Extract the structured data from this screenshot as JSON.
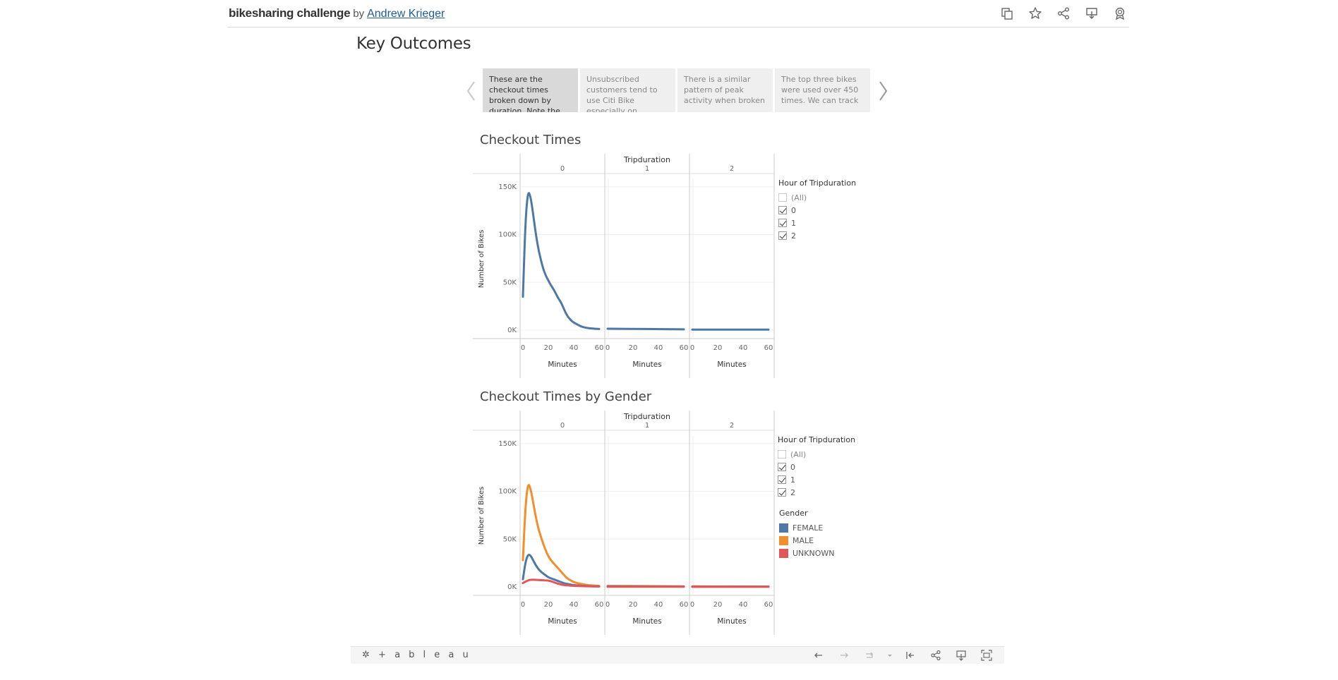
{
  "header": {
    "title": "bikesharing challenge",
    "by": "by",
    "author": "Andrew Krieger",
    "icons": [
      "copy-icon",
      "star-icon",
      "share-icon",
      "download-icon",
      "badge-icon"
    ]
  },
  "story": {
    "title": "Key Outcomes",
    "captions": [
      "These are the checkout times broken down by duration. Note the",
      "Unsubscribed customers tend to use Citi Bike especially on",
      "There is a similar pattern of peak activity when broken",
      "The top three bikes were used over 450 times. We can track"
    ]
  },
  "sheet1": {
    "title": "Checkout Times",
    "legend": {
      "title": "Hour of Tripduration",
      "items": [
        "(All)",
        "0",
        "1",
        "2"
      ]
    }
  },
  "sheet2": {
    "title": "Checkout Times by Gender",
    "legend": {
      "title": "Hour of Tripduration",
      "items": [
        "(All)",
        "0",
        "1",
        "2"
      ]
    },
    "gender_legend": {
      "title": "Gender",
      "items": [
        {
          "label": "FEMALE",
          "color": "#4e79a7"
        },
        {
          "label": "MALE",
          "color": "#f28e2b"
        },
        {
          "label": "UNKNOWN",
          "color": "#e15759"
        }
      ]
    }
  },
  "chart_data": [
    {
      "type": "line",
      "title": "Checkout Times",
      "column_header": "Tripduration",
      "panels": [
        "0",
        "1",
        "2"
      ],
      "xlabel": "Minutes",
      "ylabel": "Number of Bikes",
      "xticks": [
        "0",
        "20",
        "40",
        "60"
      ],
      "yticks": [
        "0K",
        "50K",
        "100K",
        "150K"
      ],
      "ylim": [
        0,
        155000
      ],
      "xlim": [
        0,
        60
      ],
      "series": [
        {
          "color": "#4e79a7",
          "panel_values": [
            {
              "x": [
                0,
                2,
                4,
                6,
                8,
                10,
                12,
                14,
                16,
                18,
                20,
                22,
                24,
                26,
                28,
                30,
                32,
                34,
                36,
                38,
                40,
                42,
                44,
                46,
                48,
                50,
                52,
                54,
                56,
                58,
                60
              ],
              "y": [
                35000,
                115000,
                146000,
                140000,
                122000,
                102000,
                86000,
                74000,
                64000,
                57000,
                52000,
                47000,
                43000,
                38000,
                33000,
                29000,
                23000,
                17000,
                13000,
                10000,
                8000,
                6500,
                5000,
                3800,
                3000,
                2400,
                2000,
                1700,
                1500,
                1300,
                1200
              ]
            },
            {
              "x": [
                0,
                60
              ],
              "y": [
                1500,
                800
              ]
            },
            {
              "x": [
                0,
                60
              ],
              "y": [
                600,
                500
              ]
            }
          ]
        }
      ]
    },
    {
      "type": "line",
      "title": "Checkout Times by Gender",
      "column_header": "Tripduration",
      "panels": [
        "0",
        "1",
        "2"
      ],
      "xlabel": "Minutes",
      "ylabel": "Number of Bikes",
      "xticks": [
        "0",
        "20",
        "40",
        "60"
      ],
      "yticks": [
        "0K",
        "50K",
        "100K",
        "150K"
      ],
      "ylim": [
        0,
        155000
      ],
      "xlim": [
        0,
        60
      ],
      "series": [
        {
          "name": "MALE",
          "color": "#f28e2b",
          "panel_values": [
            {
              "x": [
                0,
                2,
                4,
                6,
                8,
                10,
                12,
                14,
                16,
                18,
                20,
                22,
                24,
                26,
                28,
                30,
                32,
                34,
                36,
                38,
                40,
                44,
                48,
                52,
                56,
                60
              ],
              "y": [
                28000,
                85000,
                109000,
                103000,
                89000,
                74000,
                62000,
                53000,
                45000,
                38000,
                32000,
                28000,
                25000,
                22000,
                19000,
                16000,
                13000,
                10000,
                8000,
                6500,
                5000,
                3500,
                2500,
                1800,
                1300,
                1000
              ]
            },
            {
              "x": [
                0,
                60
              ],
              "y": [
                1000,
                600
              ]
            },
            {
              "x": [
                0,
                60
              ],
              "y": [
                500,
                400
              ]
            }
          ]
        },
        {
          "name": "FEMALE",
          "color": "#4e79a7",
          "panel_values": [
            {
              "x": [
                0,
                2,
                4,
                6,
                8,
                10,
                12,
                14,
                16,
                18,
                20,
                22,
                24,
                26,
                28,
                30,
                32,
                34,
                36,
                38,
                40,
                44,
                48,
                52,
                56,
                60
              ],
              "y": [
                8000,
                26000,
                34000,
                33000,
                28000,
                23000,
                19000,
                16000,
                14000,
                12000,
                10000,
                9000,
                8000,
                7000,
                6000,
                5000,
                4000,
                3300,
                2800,
                2300,
                1900,
                1400,
                1000,
                800,
                600,
                500
              ]
            },
            {
              "x": [
                0,
                60
              ],
              "y": [
                500,
                400
              ]
            },
            {
              "x": [
                0,
                60
              ],
              "y": [
                300,
                300
              ]
            }
          ]
        },
        {
          "name": "UNKNOWN",
          "color": "#e15759",
          "panel_values": [
            {
              "x": [
                0,
                2,
                4,
                6,
                8,
                10,
                12,
                14,
                16,
                18,
                20,
                22,
                24,
                26,
                28,
                30,
                32,
                34,
                36,
                38,
                40,
                44,
                48,
                52,
                56,
                60
              ],
              "y": [
                4000,
                5500,
                6800,
                7400,
                7500,
                7400,
                7200,
                7000,
                7000,
                6800,
                6600,
                6000,
                5000,
                4000,
                3200,
                2500,
                2000,
                1700,
                1500,
                1300,
                1100,
                900,
                700,
                600,
                500,
                400
              ]
            },
            {
              "x": [
                0,
                60
              ],
              "y": [
                200,
                200
              ]
            },
            {
              "x": [
                0,
                60
              ],
              "y": [
                100,
                100
              ]
            }
          ]
        }
      ]
    }
  ],
  "footer": {
    "logo": "+ a b l e a u",
    "icons": [
      "undo-icon",
      "redo-icon",
      "revert-icon",
      "dropdown-icon",
      "reset-icon",
      "share-icon",
      "download-icon",
      "fullscreen-icon"
    ]
  }
}
